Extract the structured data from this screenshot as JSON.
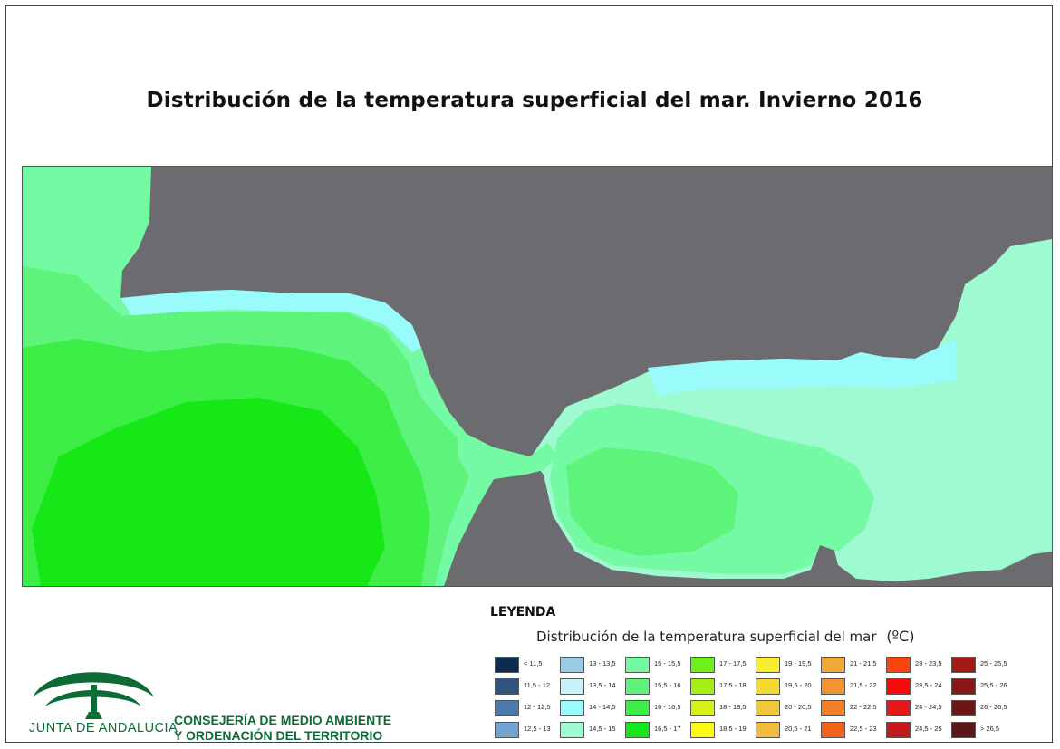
{
  "title": "Distribución de la temperatura superficial del mar. Invierno 2016",
  "legend": {
    "heading": "LEYENDA",
    "subtitle": "Distribución de la temperatura superficial del mar",
    "unit": "(ºC)",
    "classes": [
      {
        "label": "< 11,5",
        "color": "#0d2d4f"
      },
      {
        "label": "11,5 - 12",
        "color": "#2e5480"
      },
      {
        "label": "12 - 12,5",
        "color": "#4a7aab"
      },
      {
        "label": "12,5 - 13",
        "color": "#74a3d1"
      },
      {
        "label": "13 - 13,5",
        "color": "#9ccbe6"
      },
      {
        "label": "13,5 - 14",
        "color": "#c9f3fb"
      },
      {
        "label": "14 - 14,5",
        "color": "#9afbfb"
      },
      {
        "label": "14,5 - 15",
        "color": "#9efad0"
      },
      {
        "label": "15 - 15,5",
        "color": "#74f9a4"
      },
      {
        "label": "15,5 - 16",
        "color": "#5ef47c"
      },
      {
        "label": "16 - 16,5",
        "color": "#3cee45"
      },
      {
        "label": "16,5 - 17",
        "color": "#16e818"
      },
      {
        "label": "17 - 17,5",
        "color": "#6cf21a"
      },
      {
        "label": "17,5 - 18",
        "color": "#a4ef14"
      },
      {
        "label": "18 - 18,5",
        "color": "#d7f018"
      },
      {
        "label": "18,5 - 19",
        "color": "#fefa18"
      },
      {
        "label": "19 - 19,5",
        "color": "#f7ee2e"
      },
      {
        "label": "19,5 - 20",
        "color": "#f6d936"
      },
      {
        "label": "20 - 20,5",
        "color": "#f3c73a"
      },
      {
        "label": "20,5 - 21",
        "color": "#f0bb3e"
      },
      {
        "label": "21 - 21,5",
        "color": "#efa83a"
      },
      {
        "label": "21,5 - 22",
        "color": "#f09435"
      },
      {
        "label": "22 - 22,5",
        "color": "#f0802c"
      },
      {
        "label": "22,5 - 23",
        "color": "#f0621c"
      },
      {
        "label": "23 - 23,5",
        "color": "#fb4412"
      },
      {
        "label": "23,5 - 24",
        "color": "#fa0a06"
      },
      {
        "label": "24 - 24,5",
        "color": "#e41a1a"
      },
      {
        "label": "24,5 - 25",
        "color": "#c31b1b"
      },
      {
        "label": "25 - 25,5",
        "color": "#a11a18"
      },
      {
        "label": "25,5 - 26",
        "color": "#881818"
      },
      {
        "label": "26 - 26,5",
        "color": "#6c1616"
      },
      {
        "label": "> 26,5",
        "color": "#5a1618"
      }
    ]
  },
  "map": {
    "land_color": "#6c6c70",
    "regions": [
      {
        "name": "atlantic-open-sea",
        "class": "15,5 - 16"
      },
      {
        "name": "atlantic-warm-core",
        "class": "16 - 16,5"
      },
      {
        "name": "atlantic-hottest",
        "class": "16,5 - 17"
      },
      {
        "name": "atlantic-coastal",
        "class": "15 - 15,5"
      },
      {
        "name": "atlantic-shore",
        "class": "14 - 14,5"
      },
      {
        "name": "alboran-west",
        "class": "15,5 - 16"
      },
      {
        "name": "alboran-central",
        "class": "15 - 15,5"
      },
      {
        "name": "alboran-north-coast",
        "class": "14 - 14,5"
      },
      {
        "name": "mediterranean-east",
        "class": "14,5 - 15"
      }
    ],
    "labels": {
      "north-land": "",
      "africa-land": ""
    }
  },
  "branding": {
    "junta": "JUNTA DE ANDALUCIA",
    "consejeria_line1": "CONSEJERÍA DE MEDIO AMBIENTE",
    "consejeria_line2": "Y ORDENACIÓN DEL TERRITORIO",
    "green": "#0d6b35"
  }
}
